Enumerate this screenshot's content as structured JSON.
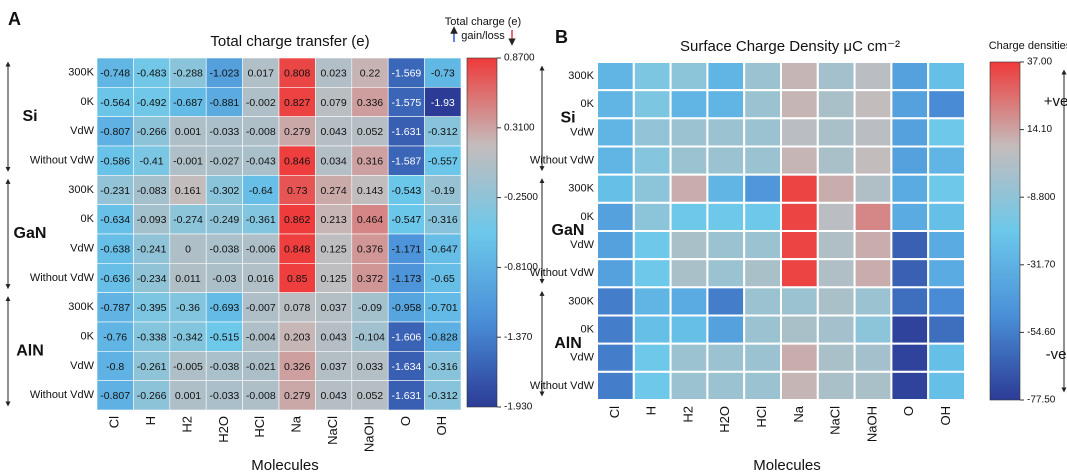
{
  "chart_data": [
    {
      "type": "heatmap",
      "panel_label": "A",
      "title": "Total charge transfer (e)",
      "colorbar_title": "Total charge (e)",
      "colorbar_subtitle": "gain/loss",
      "xlabel": "Molecules",
      "categories": [
        "Cl",
        "H",
        "H2",
        "H2O",
        "HCl",
        "Na",
        "NaCl",
        "NaOH",
        "O",
        "OH"
      ],
      "groups": [
        "Si",
        "GaN",
        "AlN"
      ],
      "y_categories": [
        "300K",
        "0K",
        "VdW",
        "Without VdW",
        "300K",
        "0K",
        "VdW",
        "Without VdW",
        "300K",
        "0K",
        "VdW",
        "Without VdW"
      ],
      "values": [
        [
          -0.748,
          -0.483,
          -0.288,
          -1.023,
          0.017,
          0.808,
          0.023,
          0.22,
          -1.569,
          -0.73
        ],
        [
          -0.564,
          -0.492,
          -0.687,
          -0.881,
          -0.002,
          0.827,
          0.079,
          0.336,
          -1.575,
          -1.93
        ],
        [
          -0.807,
          -0.266,
          0.001,
          -0.033,
          -0.008,
          0.279,
          0.043,
          0.052,
          -1.631,
          -0.312
        ],
        [
          -0.586,
          -0.41,
          -0.001,
          -0.027,
          -0.043,
          0.846,
          0.034,
          0.316,
          -1.587,
          -0.557
        ],
        [
          -0.231,
          -0.083,
          0.161,
          -0.302,
          -0.64,
          0.73,
          0.274,
          0.143,
          -0.543,
          -0.19
        ],
        [
          -0.634,
          -0.093,
          -0.274,
          -0.249,
          -0.361,
          0.862,
          0.213,
          0.464,
          -0.547,
          -0.316
        ],
        [
          -0.638,
          -0.241,
          0,
          -0.038,
          -0.006,
          0.848,
          0.125,
          0.376,
          -1.171,
          -0.647
        ],
        [
          -0.636,
          -0.234,
          0.011,
          -0.03,
          0.016,
          0.85,
          0.125,
          0.372,
          -1.173,
          -0.65
        ],
        [
          -0.787,
          -0.395,
          -0.36,
          -0.693,
          -0.007,
          0.078,
          0.037,
          -0.09,
          -0.958,
          -0.701
        ],
        [
          -0.76,
          -0.338,
          -0.342,
          -0.515,
          -0.004,
          0.203,
          0.043,
          -0.104,
          -1.606,
          -0.828
        ],
        [
          -0.8,
          -0.261,
          -0.005,
          -0.038,
          -0.021,
          0.326,
          0.037,
          0.033,
          -1.634,
          -0.316
        ],
        [
          -0.807,
          -0.266,
          0.001,
          -0.033,
          -0.008,
          0.279,
          0.043,
          0.052,
          -1.631,
          -0.312
        ]
      ],
      "show_values": true,
      "zlim": [
        -1.93,
        0.87
      ],
      "zticks": [
        {
          "value": 0.87,
          "label": "0.8700"
        },
        {
          "value": 0.31,
          "label": "0.3100"
        },
        {
          "value": -0.25,
          "label": "-0.2500"
        },
        {
          "value": -0.81,
          "label": "-0.8100"
        },
        {
          "value": -1.37,
          "label": "-1.370"
        },
        {
          "value": -1.93,
          "label": "-1.930"
        }
      ],
      "colors": [
        "#2c3c96",
        "#4a8fd8",
        "#6cc8ea",
        "#c4bcbc",
        "#ef3a3a"
      ]
    },
    {
      "type": "heatmap",
      "panel_label": "B",
      "title": "Surface Charge Density μC cm⁻²",
      "colorbar_title": "Charge densities",
      "annotations": [
        "+ve",
        "-ve"
      ],
      "xlabel": "Molecules",
      "categories": [
        "Cl",
        "H",
        "H2",
        "H2O",
        "HCl",
        "Na",
        "NaCl",
        "NaOH",
        "O",
        "OH"
      ],
      "groups": [
        "Si",
        "GaN",
        "AlN"
      ],
      "y_categories": [
        "300K",
        "0K",
        "VdW",
        "Without VdW",
        "300K",
        "0K",
        "VdW",
        "Without VdW",
        "300K",
        "0K",
        "VdW",
        "Without VdW"
      ],
      "values": [
        [
          -30,
          -15,
          -10,
          -30,
          -5,
          10,
          -2,
          5,
          -40,
          -25
        ],
        [
          -30,
          -15,
          -30,
          -30,
          -5,
          10,
          0,
          8,
          -40,
          -50
        ],
        [
          -30,
          -8,
          -5,
          -5,
          -5,
          5,
          0,
          5,
          -40,
          -20
        ],
        [
          -30,
          -12,
          -5,
          -5,
          -5,
          10,
          0,
          8,
          -40,
          -30
        ],
        [
          -25,
          -10,
          12,
          -30,
          -45,
          35,
          12,
          2,
          -35,
          -20
        ],
        [
          -40,
          -10,
          -20,
          -20,
          -20,
          35,
          5,
          20,
          -35,
          -25
        ],
        [
          -40,
          -20,
          0,
          -5,
          -5,
          35,
          2,
          12,
          -65,
          -35
        ],
        [
          -40,
          -20,
          0,
          -5,
          0,
          35,
          2,
          12,
          -65,
          -35
        ],
        [
          -55,
          -30,
          -35,
          -55,
          -5,
          -5,
          0,
          -5,
          -60,
          -50
        ],
        [
          -55,
          -25,
          -25,
          -40,
          -5,
          0,
          -2,
          -10,
          -75,
          -60
        ],
        [
          -55,
          -20,
          -5,
          -5,
          -5,
          12,
          0,
          -2,
          -75,
          -25
        ],
        [
          -55,
          -20,
          -5,
          -5,
          -5,
          10,
          0,
          0,
          -75,
          -25
        ]
      ],
      "show_values": false,
      "zlim": [
        -77.5,
        37
      ],
      "zticks": [
        {
          "value": 37,
          "label": "37.00"
        },
        {
          "value": 14.1,
          "label": "14.10"
        },
        {
          "value": -8.8,
          "label": "-8.800"
        },
        {
          "value": -31.7,
          "label": "-31.70"
        },
        {
          "value": -54.6,
          "label": "-54.60"
        },
        {
          "value": -77.5,
          "label": "-77.50"
        }
      ],
      "colors": [
        "#2c3c96",
        "#4a8fd8",
        "#6cc8ea",
        "#c4bcbc",
        "#ef3a3a"
      ]
    }
  ]
}
